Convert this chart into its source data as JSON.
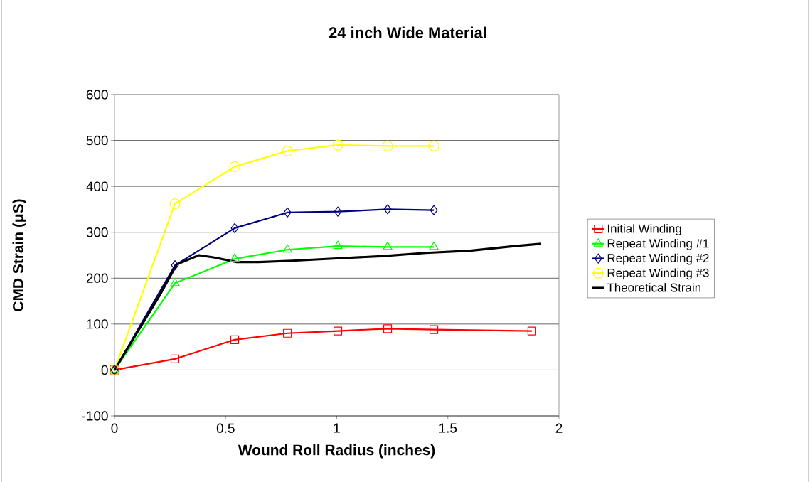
{
  "chart_data": {
    "type": "line",
    "title": "24 inch Wide Material",
    "xlabel": "Wound Roll Radius (inches)",
    "ylabel": "CMD Strain (μS)",
    "xlim": [
      0,
      2
    ],
    "xticks": [
      0,
      0.5,
      1,
      1.5,
      2
    ],
    "ylim": [
      -100,
      600
    ],
    "yticks": [
      -100,
      0,
      100,
      200,
      300,
      400,
      500,
      600
    ],
    "grid": "y",
    "legend": "right",
    "series": [
      {
        "name": "Initial Winding",
        "color": "#ff0000",
        "marker": "square",
        "x": [
          0,
          0.272,
          0.541,
          0.778,
          1.005,
          1.229,
          1.437,
          1.878
        ],
        "values": [
          0,
          24,
          66,
          80,
          85,
          90,
          88,
          85
        ]
      },
      {
        "name": "Repeat Winding #1",
        "color": "#00ff00",
        "marker": "triangle",
        "x": [
          0,
          0.272,
          0.541,
          0.778,
          1.005,
          1.229,
          1.437
        ],
        "values": [
          0,
          189,
          242,
          262,
          270,
          268,
          268
        ]
      },
      {
        "name": "Repeat Winding #2",
        "color": "#000080",
        "marker": "diamond",
        "x": [
          0,
          0.272,
          0.541,
          0.778,
          1.005,
          1.229,
          1.437
        ],
        "values": [
          0,
          228,
          309,
          343,
          345,
          350,
          348
        ]
      },
      {
        "name": "Repeat Winding #3",
        "color": "#ffff00",
        "marker": "circle",
        "x": [
          0,
          0.272,
          0.541,
          0.778,
          1.005,
          1.229,
          1.437
        ],
        "values": [
          0,
          362,
          443,
          477,
          490,
          488,
          488
        ]
      },
      {
        "name": "Theoretical Strain",
        "color": "#000000",
        "marker": "none",
        "x": [
          0,
          0.1,
          0.2,
          0.28,
          0.38,
          0.45,
          0.55,
          0.65,
          0.8,
          1.0,
          1.2,
          1.4,
          1.6,
          1.8,
          1.92
        ],
        "values": [
          0,
          80,
          160,
          230,
          250,
          245,
          235,
          235,
          238,
          243,
          248,
          255,
          260,
          270,
          275
        ]
      }
    ]
  }
}
